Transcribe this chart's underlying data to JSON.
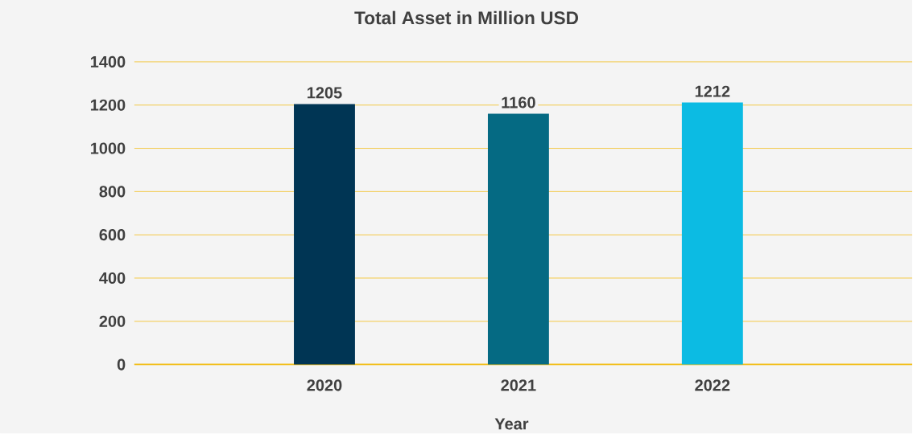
{
  "chart_data": {
    "type": "bar",
    "title": "Total Asset in Million USD",
    "xlabel": "Year",
    "categories": [
      "2020",
      "2021",
      "2022"
    ],
    "values": [
      1205,
      1160,
      1212
    ],
    "colors": [
      "#003554",
      "#056a83",
      "#0cbbe3"
    ],
    "ylim": [
      0,
      1400
    ],
    "yticks": [
      0,
      200,
      400,
      600,
      800,
      1000,
      1200,
      1400
    ],
    "grid": "y",
    "data_labels": true
  }
}
